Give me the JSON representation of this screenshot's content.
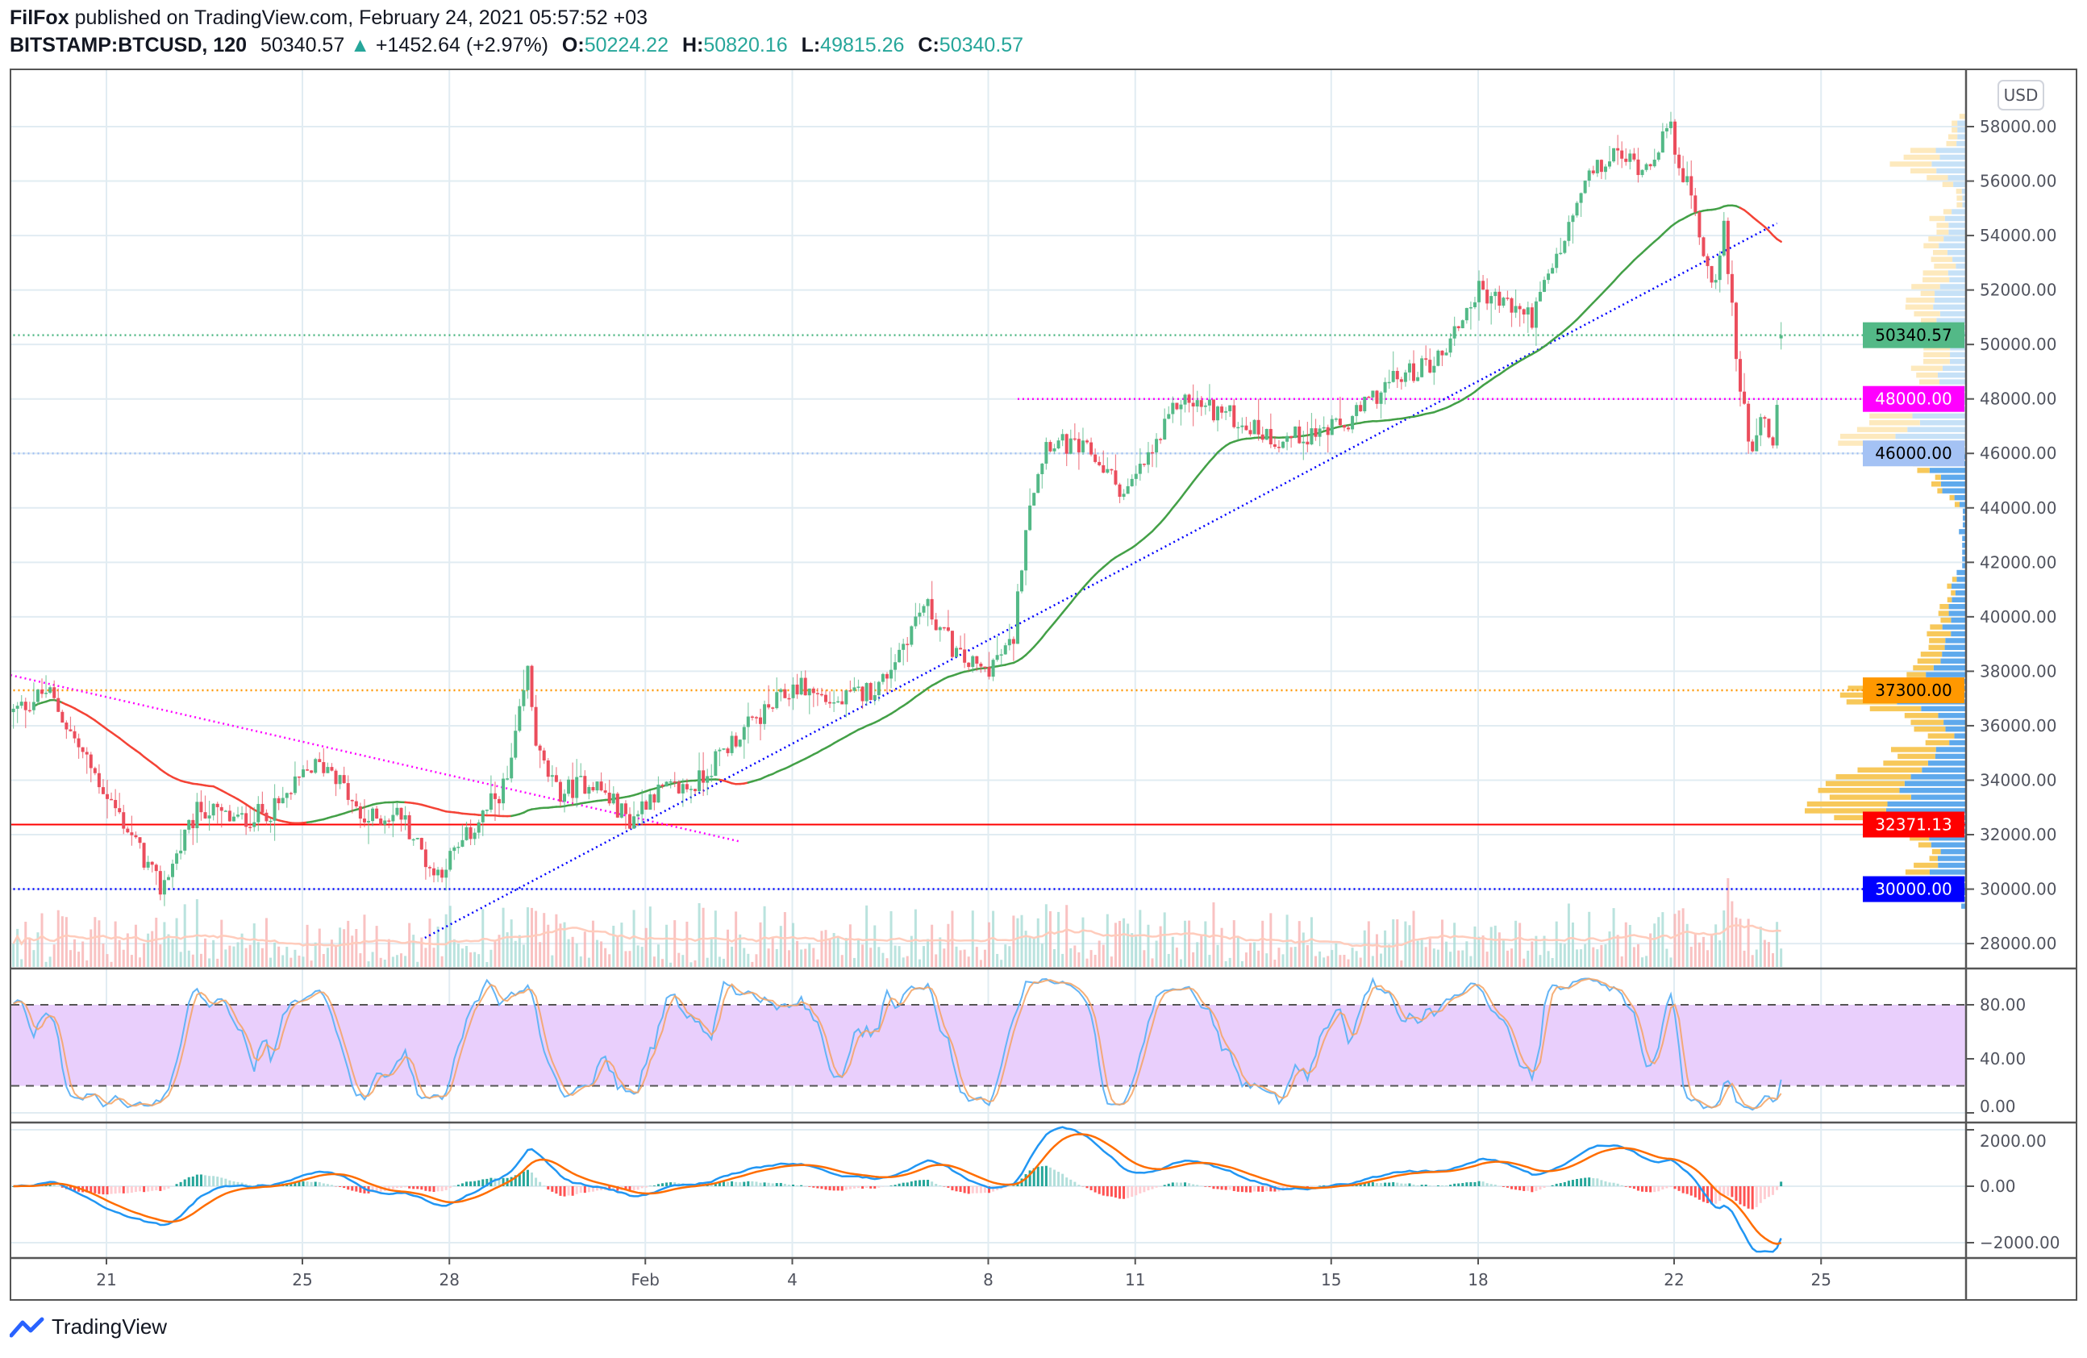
{
  "header": {
    "author": "FilFox",
    "published": "published on TradingView.com, February 24, 2021 05:57:52 +03",
    "symbol": "BITSTAMP:BTCUSD, 120",
    "last": "50340.57",
    "change": "+1452.64 (+2.97%)",
    "o_label": "O:",
    "o": "50224.22",
    "h_label": "H:",
    "h": "50820.16",
    "l_label": "L:",
    "l": "49815.26",
    "c_label": "C:",
    "c": "50340.57"
  },
  "footer": {
    "brand": "TradingView"
  },
  "colors": {
    "up": "#53b987",
    "down": "#eb4d5c",
    "grid": "#e1ecf2",
    "vp_up": "#5ea9ec",
    "vp_down": "#f7c85a",
    "vp_up_light": "#c6e1f7",
    "vp_down_light": "#fde9bd",
    "stoch_k": "#64b5f6",
    "stoch_d": "#f4a261",
    "macd": "#2196f3",
    "signal": "#ff6d00",
    "band": "#e9cffc"
  },
  "chart_data": {
    "type": "candlestick",
    "title": "BITSTAMP:BTCUSD, 120",
    "currency_label": "USD",
    "x_unit": "day (Jan 1 = 1; Feb 1 = 32)",
    "price_waypoints": [
      [
        19.1,
        36500
      ],
      [
        19.8,
        37300
      ],
      [
        20.5,
        35000
      ],
      [
        21.5,
        32000
      ],
      [
        22.1,
        30000
      ],
      [
        22.9,
        33000
      ],
      [
        23.7,
        32500
      ],
      [
        24.5,
        33000
      ],
      [
        25.2,
        34500
      ],
      [
        25.6,
        34500
      ],
      [
        26.2,
        32500
      ],
      [
        27.0,
        32800
      ],
      [
        27.7,
        30500
      ],
      [
        28.2,
        31500
      ],
      [
        29.2,
        34000
      ],
      [
        29.6,
        38000
      ],
      [
        29.8,
        35000
      ],
      [
        30.2,
        33500
      ],
      [
        30.9,
        34000
      ],
      [
        31.7,
        32500
      ],
      [
        32.1,
        33500
      ],
      [
        33.0,
        33800
      ],
      [
        33.8,
        35500
      ],
      [
        35.1,
        37500
      ],
      [
        35.9,
        36800
      ],
      [
        36.8,
        37500
      ],
      [
        37.7,
        40500
      ],
      [
        38.4,
        38500
      ],
      [
        38.9,
        38000
      ],
      [
        39.5,
        39000
      ],
      [
        39.8,
        44000
      ],
      [
        40.2,
        46500
      ],
      [
        41.1,
        46000
      ],
      [
        41.8,
        44500
      ],
      [
        42.5,
        46500
      ],
      [
        42.9,
        48000
      ],
      [
        43.8,
        47500
      ],
      [
        44.9,
        46500
      ],
      [
        46.3,
        47000
      ],
      [
        47.1,
        48500
      ],
      [
        48.2,
        49500
      ],
      [
        49.0,
        52000
      ],
      [
        50.1,
        51000
      ],
      [
        50.8,
        54000
      ],
      [
        51.2,
        56000
      ],
      [
        51.8,
        57000
      ],
      [
        52.4,
        56500
      ],
      [
        52.9,
        58000
      ],
      [
        53.4,
        55000
      ],
      [
        53.8,
        52000
      ],
      [
        54.0,
        54500
      ],
      [
        54.3,
        49000
      ],
      [
        54.6,
        46000
      ],
      [
        54.8,
        48000
      ],
      [
        55.0,
        45500
      ],
      [
        55.2,
        50340.57
      ]
    ],
    "last_candle": {
      "o": 50224.22,
      "h": 50820.16,
      "l": 49815.26,
      "c": 50340.57
    },
    "price_axis": {
      "min": 28000,
      "max": 58000,
      "ticks": [
        "28000.00",
        "30000.00",
        "32000.00",
        "34000.00",
        "36000.00",
        "38000.00",
        "40000.00",
        "42000.00",
        "44000.00",
        "46000.00",
        "48000.00",
        "50000.00",
        "52000.00",
        "54000.00",
        "56000.00",
        "58000.00"
      ]
    },
    "time_axis": [
      {
        "t": 21,
        "label": "21"
      },
      {
        "t": 25,
        "label": "25"
      },
      {
        "t": 28,
        "label": "28"
      },
      {
        "t": 32,
        "label": "Feb"
      },
      {
        "t": 35,
        "label": "4"
      },
      {
        "t": 39,
        "label": "8"
      },
      {
        "t": 42,
        "label": "11"
      },
      {
        "t": 46,
        "label": "15"
      },
      {
        "t": 49,
        "label": "18"
      },
      {
        "t": 53,
        "label": "22"
      },
      {
        "t": 56,
        "label": "25"
      }
    ],
    "levels": [
      {
        "price": 50340.57,
        "label": "50340.57",
        "color": "#53b987",
        "text": "#000000",
        "style": "dotted",
        "from": 19
      },
      {
        "price": 48000,
        "label": "48000.00",
        "color": "#ff00ff",
        "text": "#ffffff",
        "style": "dotted",
        "from": 39.6
      },
      {
        "price": 46000,
        "label": "46000.00",
        "color": "#a4c2f4",
        "text": "#000000",
        "style": "dotted",
        "from": 19
      },
      {
        "price": 37300,
        "label": "37300.00",
        "color": "#ff9800",
        "text": "#000000",
        "style": "dotted",
        "from": 19
      },
      {
        "price": 32371.13,
        "label": "32371.13",
        "color": "#ff0000",
        "text": "#ffffff",
        "style": "solid",
        "from": 19
      },
      {
        "price": 30000,
        "label": "30000.00",
        "color": "#0000ff",
        "text": "#ffffff",
        "style": "dotted",
        "from": 19
      }
    ],
    "trendlines": [
      {
        "name": "descending-trendline",
        "color": "#ff00ff",
        "from": [
          19.04,
          37860
        ],
        "to": [
          33.9,
          31760
        ]
      },
      {
        "name": "ascending-trendline",
        "color": "#0000ff",
        "from": [
          27.5,
          28210
        ],
        "to": [
          55.1,
          54450
        ]
      }
    ],
    "stoch": {
      "ticks": [
        "80.00",
        "40.00",
        "0.00"
      ],
      "upper": 80,
      "lower": 20
    },
    "macd": {
      "ticks": [
        "2000.00",
        "0.00",
        "−2000.00"
      ]
    }
  }
}
